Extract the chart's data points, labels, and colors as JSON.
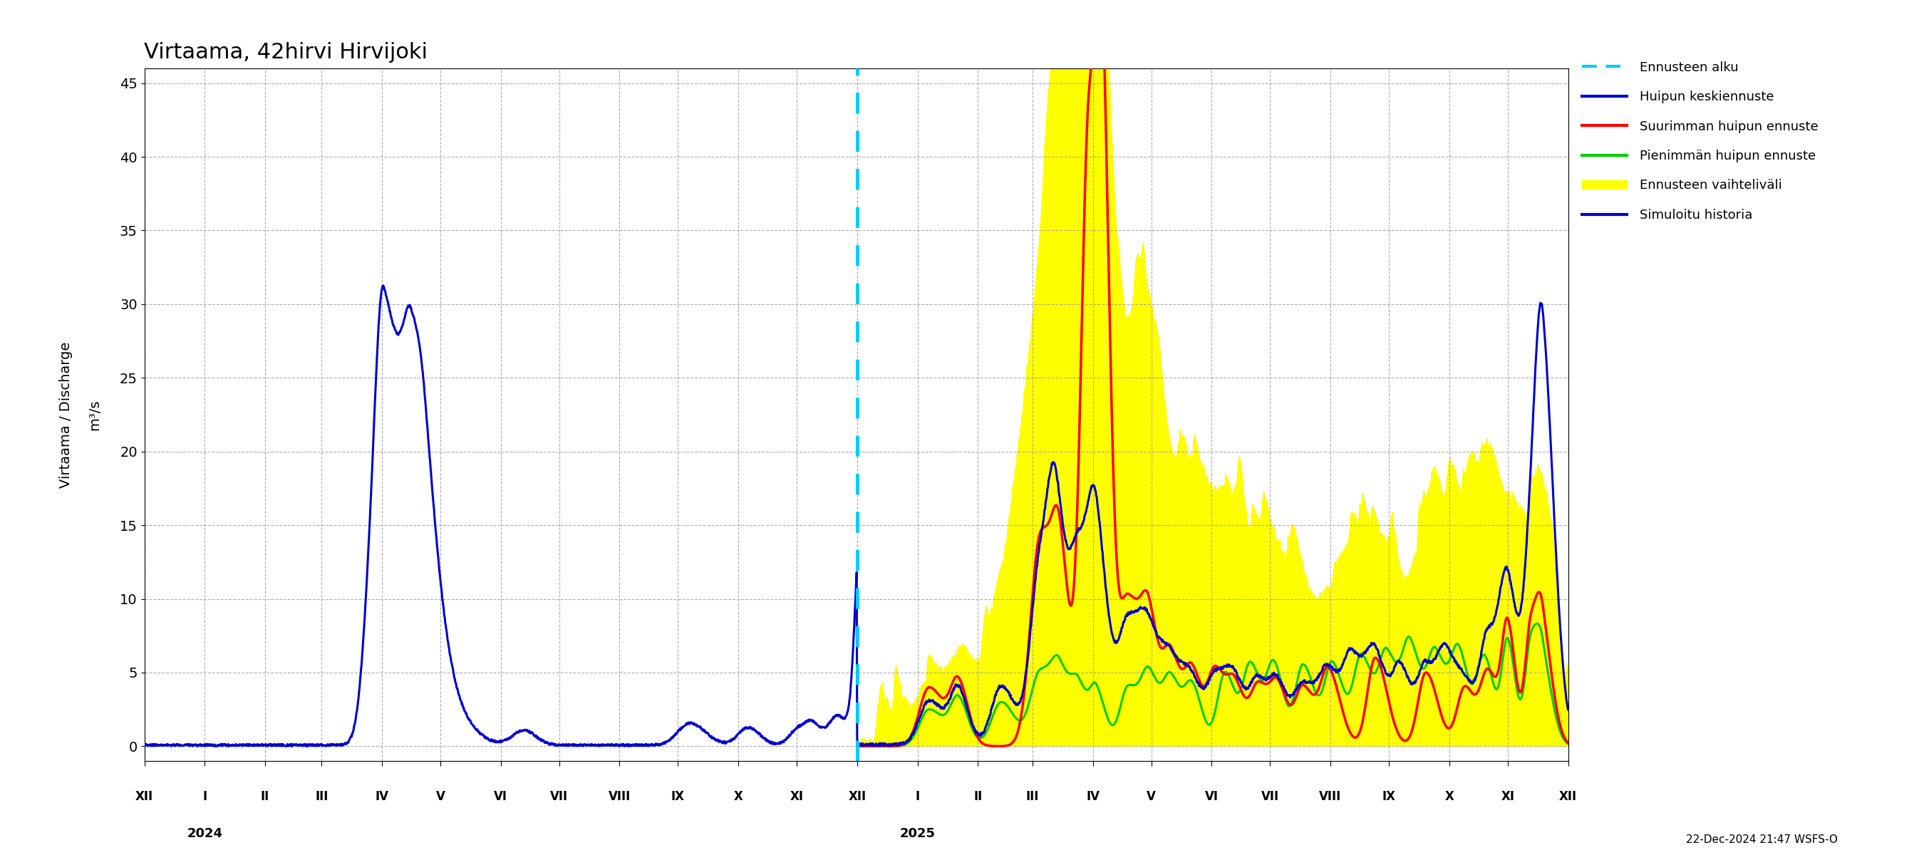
{
  "title": "Virtaama, 42hirvi Hirvijoki",
  "ylabel_left": "Virtaama / Discharge",
  "ylabel_right": "m³/s",
  "ylim": [
    -1,
    46
  ],
  "yticks": [
    0,
    5,
    10,
    15,
    20,
    25,
    30,
    35,
    40,
    45
  ],
  "background_color": "#ffffff",
  "grid_color": "#999999",
  "colors": {
    "simuloitu": "#0000cc",
    "suurin": "#ff0000",
    "pienin": "#00cc00",
    "vaihteluvali": "#ffff00",
    "ennusteen_alku": "#00ccff"
  },
  "legend_labels": [
    "Ennusteen alku",
    "Huipun keskiennuste",
    "Suurimman huipun ennuste",
    "Pienimmän huipun ennuste",
    "Ennusteen vaihteliväli",
    "Simuloitu historia"
  ],
  "footnote": "22-Dec-2024 21:47 WSFS-O",
  "x_month_labels": [
    "XII",
    "I",
    "II",
    "III",
    "IV",
    "V",
    "VI",
    "VII",
    "VIII",
    "IX",
    "X",
    "XI",
    "XII",
    "I",
    "II",
    "III",
    "IV",
    "V",
    "VI",
    "VII",
    "VIII",
    "IX",
    "X",
    "XI",
    "XII"
  ],
  "month_starts": [
    0,
    31,
    62,
    91,
    122,
    152,
    183,
    213,
    244,
    274,
    305,
    335,
    366,
    397,
    428,
    456,
    487,
    517,
    548,
    578,
    609,
    639,
    670,
    700,
    731
  ]
}
